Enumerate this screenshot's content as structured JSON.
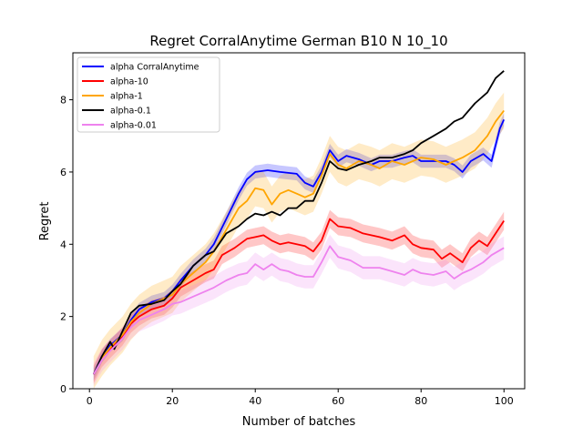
{
  "chart_data": {
    "type": "line",
    "title": "Regret CorralAnytime German B10 N 10_10",
    "xlabel": "Number of batches",
    "ylabel": "Regret",
    "xlim": [
      -4,
      105
    ],
    "ylim": [
      0,
      9.3
    ],
    "xticks": [
      0,
      20,
      40,
      60,
      80,
      100
    ],
    "yticks": [
      0,
      2,
      4,
      6,
      8
    ],
    "legend_position": "top-left",
    "grid": false,
    "series": [
      {
        "name": "alpha CorralAnytime",
        "color": "#0000ff",
        "band": 0.18,
        "keypoints": [
          [
            1,
            0.4
          ],
          [
            3,
            0.9
          ],
          [
            5,
            1.2
          ],
          [
            8,
            1.5
          ],
          [
            10,
            1.9
          ],
          [
            12,
            2.2
          ],
          [
            15,
            2.4
          ],
          [
            18,
            2.5
          ],
          [
            20,
            2.7
          ],
          [
            22,
            3.0
          ],
          [
            25,
            3.4
          ],
          [
            28,
            3.7
          ],
          [
            30,
            4.0
          ],
          [
            33,
            4.7
          ],
          [
            36,
            5.4
          ],
          [
            38,
            5.8
          ],
          [
            40,
            6.0
          ],
          [
            43,
            6.05
          ],
          [
            46,
            6.0
          ],
          [
            50,
            5.95
          ],
          [
            52,
            5.7
          ],
          [
            54,
            5.6
          ],
          [
            56,
            6.0
          ],
          [
            58,
            6.6
          ],
          [
            60,
            6.3
          ],
          [
            62,
            6.45
          ],
          [
            65,
            6.35
          ],
          [
            68,
            6.2
          ],
          [
            70,
            6.3
          ],
          [
            73,
            6.3
          ],
          [
            76,
            6.4
          ],
          [
            78,
            6.45
          ],
          [
            80,
            6.3
          ],
          [
            83,
            6.3
          ],
          [
            86,
            6.3
          ],
          [
            88,
            6.2
          ],
          [
            90,
            6.0
          ],
          [
            92,
            6.3
          ],
          [
            95,
            6.5
          ],
          [
            97,
            6.3
          ],
          [
            99,
            7.2
          ],
          [
            100,
            7.45
          ]
        ]
      },
      {
        "name": "alpha-10",
        "color": "#ff0000",
        "band": 0.25,
        "keypoints": [
          [
            1,
            0.4
          ],
          [
            3,
            0.85
          ],
          [
            5,
            1.1
          ],
          [
            8,
            1.45
          ],
          [
            10,
            1.8
          ],
          [
            12,
            2.0
          ],
          [
            15,
            2.2
          ],
          [
            18,
            2.3
          ],
          [
            20,
            2.5
          ],
          [
            22,
            2.8
          ],
          [
            25,
            3.0
          ],
          [
            28,
            3.2
          ],
          [
            30,
            3.3
          ],
          [
            32,
            3.7
          ],
          [
            35,
            3.9
          ],
          [
            38,
            4.15
          ],
          [
            40,
            4.2
          ],
          [
            42,
            4.25
          ],
          [
            44,
            4.1
          ],
          [
            46,
            4.0
          ],
          [
            48,
            4.05
          ],
          [
            50,
            4.0
          ],
          [
            52,
            3.95
          ],
          [
            54,
            3.8
          ],
          [
            56,
            4.1
          ],
          [
            58,
            4.7
          ],
          [
            60,
            4.5
          ],
          [
            63,
            4.45
          ],
          [
            66,
            4.3
          ],
          [
            70,
            4.2
          ],
          [
            73,
            4.1
          ],
          [
            76,
            4.25
          ],
          [
            78,
            4.0
          ],
          [
            80,
            3.9
          ],
          [
            83,
            3.85
          ],
          [
            85,
            3.6
          ],
          [
            87,
            3.75
          ],
          [
            90,
            3.5
          ],
          [
            92,
            3.9
          ],
          [
            94,
            4.1
          ],
          [
            96,
            3.95
          ],
          [
            98,
            4.3
          ],
          [
            100,
            4.65
          ]
        ]
      },
      {
        "name": "alpha-1",
        "color": "#ffa500",
        "band": 0.5,
        "keypoints": [
          [
            1,
            0.4
          ],
          [
            3,
            0.85
          ],
          [
            5,
            1.15
          ],
          [
            8,
            1.5
          ],
          [
            10,
            1.85
          ],
          [
            12,
            2.1
          ],
          [
            15,
            2.35
          ],
          [
            18,
            2.5
          ],
          [
            20,
            2.6
          ],
          [
            22,
            2.9
          ],
          [
            25,
            3.2
          ],
          [
            28,
            3.5
          ],
          [
            30,
            3.8
          ],
          [
            33,
            4.4
          ],
          [
            36,
            5.0
          ],
          [
            38,
            5.2
          ],
          [
            40,
            5.55
          ],
          [
            42,
            5.5
          ],
          [
            44,
            5.1
          ],
          [
            46,
            5.4
          ],
          [
            48,
            5.5
          ],
          [
            50,
            5.4
          ],
          [
            52,
            5.3
          ],
          [
            54,
            5.4
          ],
          [
            56,
            5.9
          ],
          [
            58,
            6.5
          ],
          [
            60,
            6.2
          ],
          [
            62,
            6.1
          ],
          [
            65,
            6.3
          ],
          [
            68,
            6.2
          ],
          [
            70,
            6.1
          ],
          [
            73,
            6.3
          ],
          [
            76,
            6.2
          ],
          [
            80,
            6.4
          ],
          [
            83,
            6.35
          ],
          [
            86,
            6.2
          ],
          [
            88,
            6.3
          ],
          [
            90,
            6.4
          ],
          [
            93,
            6.6
          ],
          [
            96,
            7.0
          ],
          [
            98,
            7.4
          ],
          [
            100,
            7.7
          ]
        ]
      },
      {
        "name": "alpha-0.1",
        "color": "#000000",
        "band": 0.0,
        "keypoints": [
          [
            1,
            0.4
          ],
          [
            3,
            0.9
          ],
          [
            5,
            1.3
          ],
          [
            6,
            1.1
          ],
          [
            8,
            1.6
          ],
          [
            10,
            2.1
          ],
          [
            12,
            2.3
          ],
          [
            15,
            2.35
          ],
          [
            18,
            2.45
          ],
          [
            20,
            2.7
          ],
          [
            22,
            2.9
          ],
          [
            25,
            3.4
          ],
          [
            28,
            3.7
          ],
          [
            30,
            3.8
          ],
          [
            33,
            4.3
          ],
          [
            36,
            4.5
          ],
          [
            38,
            4.7
          ],
          [
            40,
            4.85
          ],
          [
            42,
            4.8
          ],
          [
            44,
            4.9
          ],
          [
            46,
            4.8
          ],
          [
            48,
            5.0
          ],
          [
            50,
            5.0
          ],
          [
            52,
            5.2
          ],
          [
            54,
            5.2
          ],
          [
            56,
            5.7
          ],
          [
            58,
            6.3
          ],
          [
            60,
            6.1
          ],
          [
            62,
            6.05
          ],
          [
            65,
            6.2
          ],
          [
            68,
            6.3
          ],
          [
            70,
            6.4
          ],
          [
            73,
            6.4
          ],
          [
            76,
            6.5
          ],
          [
            78,
            6.6
          ],
          [
            80,
            6.8
          ],
          [
            83,
            7.0
          ],
          [
            86,
            7.2
          ],
          [
            88,
            7.4
          ],
          [
            90,
            7.5
          ],
          [
            93,
            7.9
          ],
          [
            96,
            8.2
          ],
          [
            98,
            8.6
          ],
          [
            100,
            8.8
          ]
        ]
      },
      {
        "name": "alpha-0.01",
        "color": "#ee82ee",
        "band": 0.32,
        "keypoints": [
          [
            1,
            0.4
          ],
          [
            3,
            0.8
          ],
          [
            5,
            1.05
          ],
          [
            8,
            1.4
          ],
          [
            10,
            1.7
          ],
          [
            12,
            1.9
          ],
          [
            15,
            2.05
          ],
          [
            18,
            2.2
          ],
          [
            20,
            2.35
          ],
          [
            22,
            2.4
          ],
          [
            25,
            2.55
          ],
          [
            28,
            2.7
          ],
          [
            30,
            2.8
          ],
          [
            33,
            3.0
          ],
          [
            36,
            3.15
          ],
          [
            38,
            3.2
          ],
          [
            40,
            3.45
          ],
          [
            42,
            3.3
          ],
          [
            44,
            3.45
          ],
          [
            46,
            3.3
          ],
          [
            48,
            3.25
          ],
          [
            50,
            3.15
          ],
          [
            52,
            3.1
          ],
          [
            54,
            3.1
          ],
          [
            56,
            3.5
          ],
          [
            58,
            3.95
          ],
          [
            60,
            3.65
          ],
          [
            63,
            3.55
          ],
          [
            66,
            3.35
          ],
          [
            70,
            3.35
          ],
          [
            73,
            3.25
          ],
          [
            76,
            3.15
          ],
          [
            78,
            3.3
          ],
          [
            80,
            3.2
          ],
          [
            83,
            3.15
          ],
          [
            86,
            3.25
          ],
          [
            88,
            3.05
          ],
          [
            90,
            3.2
          ],
          [
            92,
            3.3
          ],
          [
            95,
            3.5
          ],
          [
            97,
            3.7
          ],
          [
            100,
            3.9
          ]
        ]
      }
    ]
  }
}
